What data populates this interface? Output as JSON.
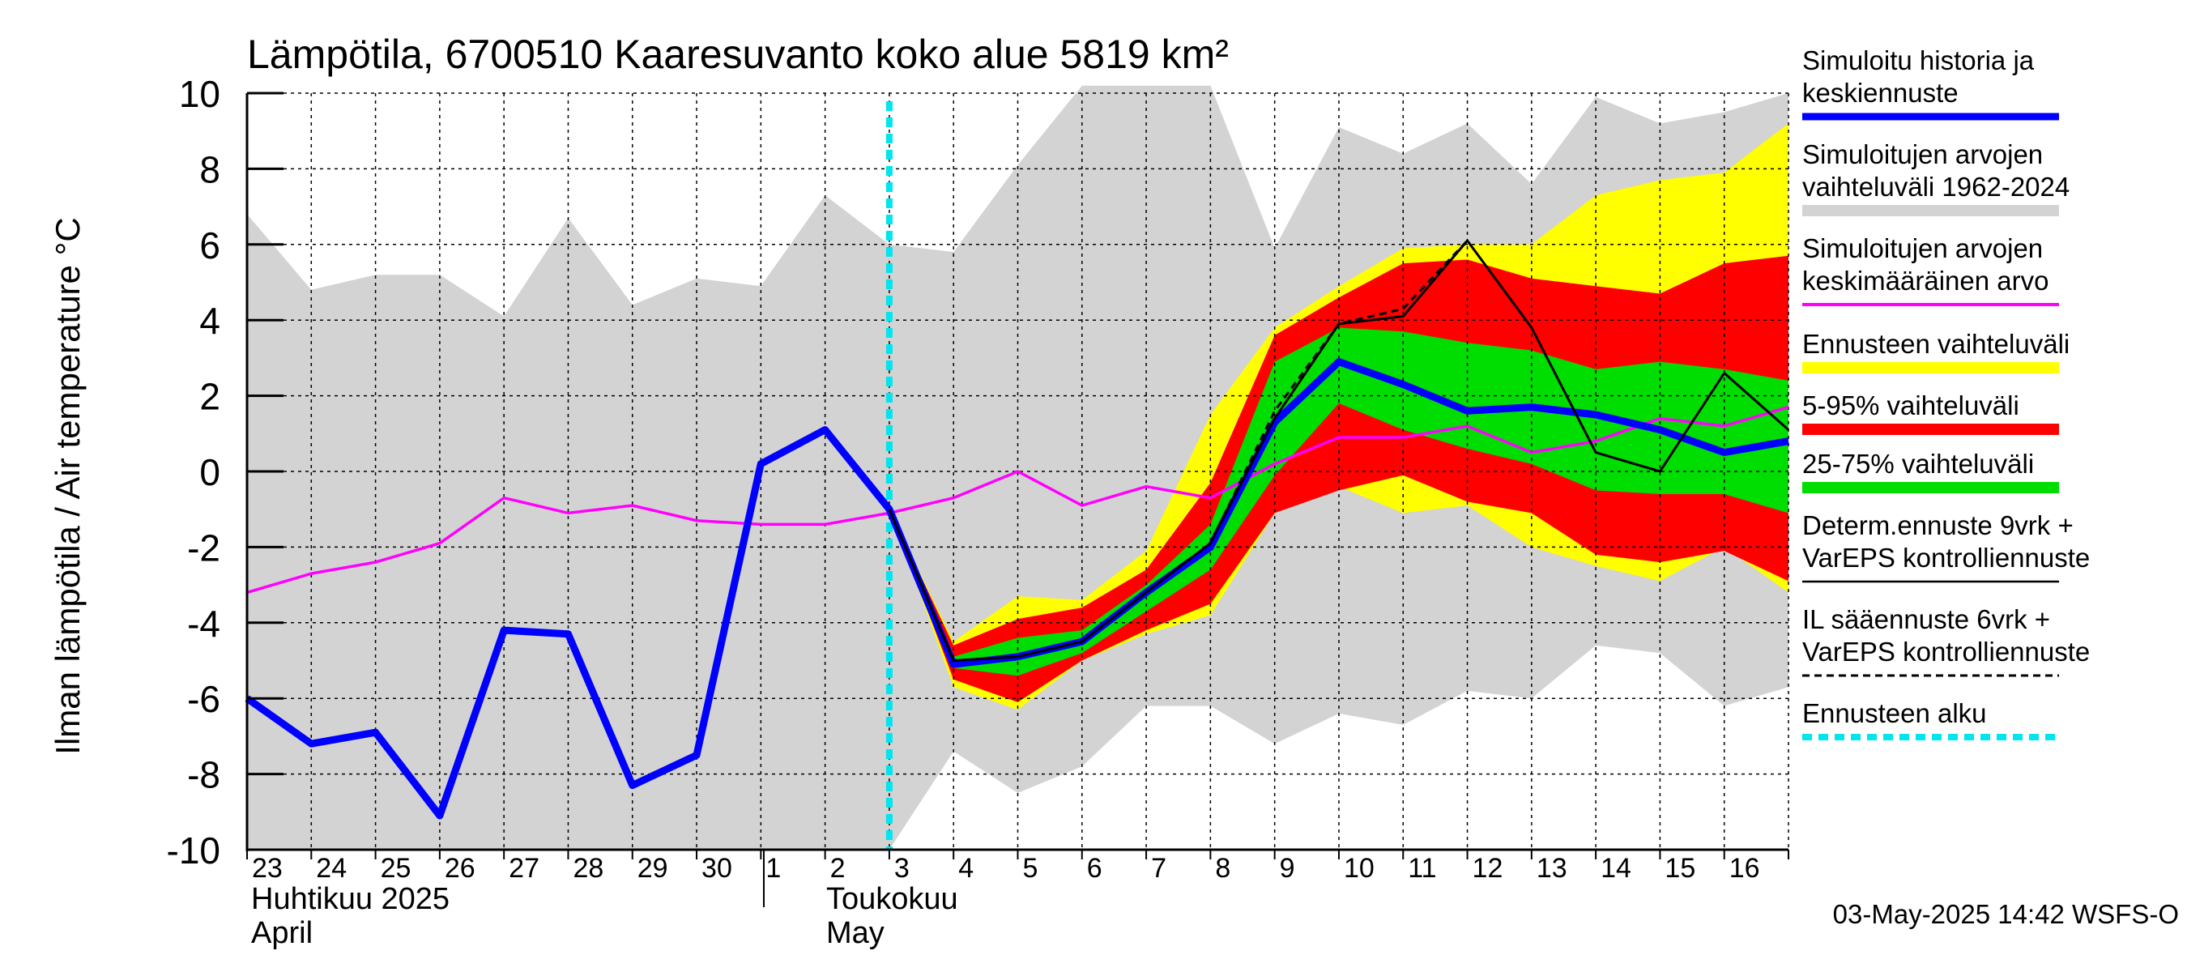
{
  "chart_data": {
    "type": "line",
    "title": "Lämpötila, 6700510 Kaaresuvanto koko alue 5819 km²",
    "ylabel": "Ilman lämpötila / Air temperature   °C",
    "ylim": [
      -10,
      10
    ],
    "yticks": [
      "10",
      "8",
      "6",
      "4",
      "2",
      "0",
      "-2",
      "-4",
      "-6",
      "-8",
      "-10"
    ],
    "xlim": [
      -0.5,
      23.5
    ],
    "x_tick_labels": [
      "23",
      "24",
      "25",
      "26",
      "27",
      "28",
      "29",
      "30",
      "1",
      "2",
      "3",
      "4",
      "5",
      "6",
      "7",
      "8",
      "9",
      "10",
      "11",
      "12",
      "13",
      "14",
      "15",
      "16"
    ],
    "month_labels": {
      "april_fi": "Huhtikuu  2025",
      "april_en": "April",
      "may_fi": "Toukokuu",
      "may_en": "May"
    },
    "forecast_start_x": 9.5,
    "footer": "03-May-2025 14:42 WSFS-O",
    "colors": {
      "history": "#0000ff",
      "range_hist": "#d3d3d3",
      "mean": "#ff00ff",
      "forecast_range": "#ffff00",
      "p5_95": "#ff0000",
      "p25_75": "#00dd00",
      "determ": "#000000",
      "forecast_start": "#00e5ee"
    },
    "hist_range": {
      "x": [
        -0.5,
        0.5,
        1.5,
        2.5,
        3.5,
        4.5,
        5.5,
        6.5,
        7.5,
        8.5,
        9.5,
        10.5,
        11.5,
        12.5,
        13.5,
        14.5,
        15.5,
        16.5,
        17.5,
        18.5,
        19.5,
        20.5,
        21.5,
        22.5,
        23.5
      ],
      "high": [
        6.8,
        4.8,
        5.2,
        5.2,
        4.1,
        6.7,
        4.4,
        5.1,
        4.9,
        7.3,
        6.0,
        5.8,
        8.1,
        10.2,
        10.2,
        10.2,
        5.9,
        9.1,
        8.4,
        9.2,
        7.6,
        9.9,
        9.2,
        9.5,
        10.0
      ],
      "low": [
        -10,
        -10,
        -10,
        -10,
        -10,
        -10,
        -10,
        -10,
        -10,
        -10,
        -10,
        -7.4,
        -8.5,
        -7.8,
        -6.2,
        -6.2,
        -7.2,
        -6.4,
        -6.7,
        -5.8,
        -6.0,
        -4.6,
        -4.8,
        -6.2,
        -5.7
      ]
    },
    "forecast_bands": {
      "x": [
        9.5,
        10.5,
        11.5,
        12.5,
        13.5,
        14.5,
        15.5,
        16.5,
        17.5,
        18.5,
        19.5,
        20.5,
        21.5,
        22.5,
        23.5
      ],
      "range_high": [
        -1.0,
        -4.5,
        -3.3,
        -3.4,
        -2.1,
        1.5,
        3.8,
        4.9,
        5.9,
        6.0,
        6.0,
        7.3,
        7.7,
        7.9,
        9.2
      ],
      "range_low": [
        -1.0,
        -5.7,
        -6.3,
        -5.0,
        -4.3,
        -3.8,
        -1.1,
        -0.4,
        -1.1,
        -0.9,
        -2.0,
        -2.5,
        -2.9,
        -2.0,
        -3.2
      ],
      "p95": [
        -1.0,
        -4.6,
        -3.9,
        -3.6,
        -2.6,
        -0.3,
        3.6,
        4.6,
        5.5,
        5.6,
        5.1,
        4.9,
        4.7,
        5.5,
        5.7
      ],
      "p5": [
        -1.0,
        -5.5,
        -6.1,
        -5.0,
        -4.2,
        -3.5,
        -1.1,
        -0.5,
        -0.1,
        -0.8,
        -1.1,
        -2.2,
        -2.4,
        -2.1,
        -2.9
      ],
      "p75": [
        -1.0,
        -4.9,
        -4.4,
        -4.2,
        -3.0,
        -1.4,
        2.9,
        3.8,
        3.7,
        3.4,
        3.2,
        2.7,
        2.9,
        2.7,
        2.4
      ],
      "p25": [
        -1.0,
        -5.2,
        -5.4,
        -4.8,
        -3.7,
        -2.6,
        -0.1,
        1.8,
        1.1,
        0.6,
        0.2,
        -0.5,
        -0.6,
        -0.6,
        -1.1
      ]
    },
    "series": [
      {
        "name": "history_and_median",
        "x": [
          -0.5,
          0.5,
          1.5,
          2.5,
          3.5,
          4.5,
          5.5,
          6.5,
          7.5,
          8.5,
          9.5,
          10.5,
          11.5,
          12.5,
          13.5,
          14.5,
          15.5,
          16.5,
          17.5,
          18.5,
          19.5,
          20.5,
          21.5,
          22.5,
          23.5
        ],
        "y": [
          -6.0,
          -7.2,
          -6.9,
          -9.1,
          -4.2,
          -4.3,
          -8.3,
          -7.5,
          0.2,
          1.1,
          -1.0,
          -5.1,
          -4.9,
          -4.5,
          -3.2,
          -2.0,
          1.3,
          2.9,
          2.3,
          1.6,
          1.7,
          1.5,
          1.1,
          0.5,
          0.8
        ]
      },
      {
        "name": "mean",
        "x": [
          -0.5,
          0.5,
          1.5,
          2.5,
          3.5,
          4.5,
          5.5,
          6.5,
          7.5,
          8.5,
          9.5,
          10.5,
          11.5,
          12.5,
          13.5,
          14.5,
          15.5,
          16.5,
          17.5,
          18.5,
          19.5,
          20.5,
          21.5,
          22.5,
          23.5
        ],
        "y": [
          -3.2,
          -2.7,
          -2.4,
          -1.9,
          -0.7,
          -1.1,
          -0.9,
          -1.3,
          -1.4,
          -1.4,
          -1.1,
          -0.7,
          0.0,
          -0.9,
          -0.4,
          -0.7,
          0.2,
          0.9,
          0.9,
          1.2,
          0.5,
          0.8,
          1.4,
          1.2,
          1.7
        ]
      },
      {
        "name": "determ",
        "x": [
          9.5,
          10.5,
          11.5,
          12.5,
          13.5,
          14.5,
          15.5,
          16.5,
          17.5,
          18.5,
          19.5,
          20.5,
          21.5,
          22.5,
          23.5
        ],
        "y": [
          -1.0,
          -5.0,
          -4.9,
          -4.5,
          -3.2,
          -1.9,
          1.4,
          3.9,
          4.1,
          6.1,
          3.8,
          0.5,
          0.0,
          2.6,
          1.1
        ]
      },
      {
        "name": "il",
        "x": [
          9.5,
          10.5,
          11.5,
          12.5,
          13.5,
          14.5,
          15.5,
          16.5,
          17.5,
          18.5
        ],
        "y": [
          -1.0,
          -5.0,
          -4.9,
          -4.5,
          -3.2,
          -1.9,
          1.6,
          3.9,
          4.3,
          6.1
        ]
      }
    ]
  },
  "legend": {
    "items": [
      {
        "id": "history",
        "lines": [
          "Simuloitu historia ja",
          "keskiennuste"
        ]
      },
      {
        "id": "range_hist",
        "lines": [
          "Simuloitujen arvojen",
          "vaihteluväli 1962-2024"
        ]
      },
      {
        "id": "mean",
        "lines": [
          "Simuloitujen arvojen",
          "keskimääräinen arvo"
        ]
      },
      {
        "id": "forecast_range",
        "lines": [
          "Ennusteen vaihteluväli"
        ]
      },
      {
        "id": "p5_95",
        "lines": [
          "5-95% vaihteluväli"
        ]
      },
      {
        "id": "p25_75",
        "lines": [
          "25-75% vaihteluväli"
        ]
      },
      {
        "id": "determ",
        "lines": [
          "Determ.ennuste 9vrk +",
          "VarEPS kontrolliennuste"
        ]
      },
      {
        "id": "il",
        "lines": [
          "IL sääennuste 6vrk  +",
          "  VarEPS kontrolliennuste"
        ]
      },
      {
        "id": "forecast_start",
        "lines": [
          "Ennusteen alku"
        ]
      }
    ]
  }
}
